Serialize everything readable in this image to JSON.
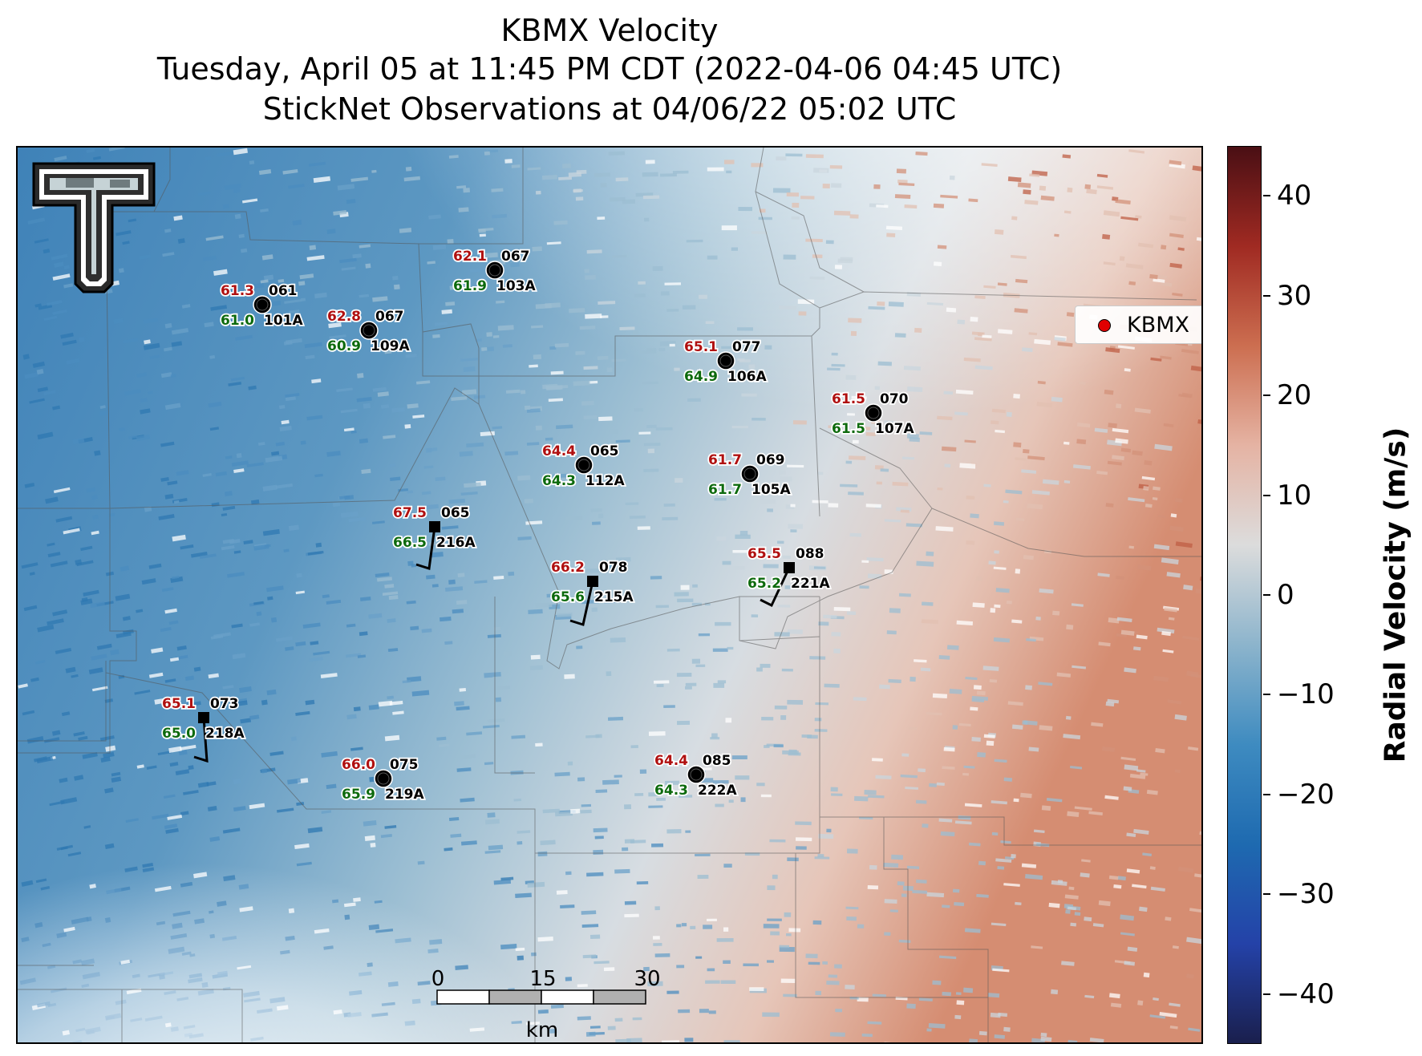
{
  "title": {
    "line1": "KBMX Velocity",
    "line2": "Tuesday, April 05 at 11:45 PM CDT (2022-04-06 04:45 UTC)",
    "line3": "StickNet Observations at 04/06/22 05:02 UTC"
  },
  "legend": {
    "label": "KBMX",
    "marker_color": "#e00000"
  },
  "colorbar": {
    "label": "Radial Velocity (m/s)",
    "range": [
      -45,
      45
    ],
    "ticks": [
      "40",
      "30",
      "20",
      "10",
      "0",
      "−10",
      "−20",
      "−30",
      "−40"
    ],
    "tick_values": [
      40,
      30,
      20,
      10,
      0,
      -10,
      -20,
      -30,
      -40
    ],
    "colors": [
      "#1a1f4d",
      "#2442a8",
      "#1e6ab0",
      "#3e8bc0",
      "#8cb4cc",
      "#dcdcdc",
      "#e5b3a3",
      "#cc6e50",
      "#a02a22",
      "#4a0f14"
    ]
  },
  "scale_bar": {
    "labels": [
      "0",
      "15",
      "30"
    ],
    "unit": "km"
  },
  "logo": {
    "name": "Texas Tech Double T"
  },
  "stations": [
    {
      "id": "067",
      "temp": "62.1",
      "dew": "61.9",
      "num": "103A",
      "type": "circle"
    },
    {
      "id": "061",
      "temp": "61.3",
      "dew": "61.0",
      "num": "101A",
      "type": "circle"
    },
    {
      "id": "067",
      "temp": "62.8",
      "dew": "60.9",
      "num": "109A",
      "type": "circle"
    },
    {
      "id": "077",
      "temp": "65.1",
      "dew": "64.9",
      "num": "106A",
      "type": "circle"
    },
    {
      "id": "070",
      "temp": "61.5",
      "dew": "61.5",
      "num": "107A",
      "type": "circle"
    },
    {
      "id": "065",
      "temp": "64.4",
      "dew": "64.3",
      "num": "112A",
      "type": "circle"
    },
    {
      "id": "069",
      "temp": "61.7",
      "dew": "61.7",
      "num": "105A",
      "type": "circle"
    },
    {
      "id": "065",
      "temp": "67.5",
      "dew": "66.5",
      "num": "216A",
      "type": "square"
    },
    {
      "id": "078",
      "temp": "66.2",
      "dew": "65.6",
      "num": "215A",
      "type": "square"
    },
    {
      "id": "088",
      "temp": "65.5",
      "dew": "65.2",
      "num": "221A",
      "type": "square"
    },
    {
      "id": "073",
      "temp": "65.1",
      "dew": "65.0",
      "num": "218A",
      "type": "square"
    },
    {
      "id": "075",
      "temp": "66.0",
      "dew": "65.9",
      "num": "219A",
      "type": "circle"
    },
    {
      "id": "085",
      "temp": "64.4",
      "dew": "64.3",
      "num": "222A",
      "type": "circle"
    }
  ]
}
